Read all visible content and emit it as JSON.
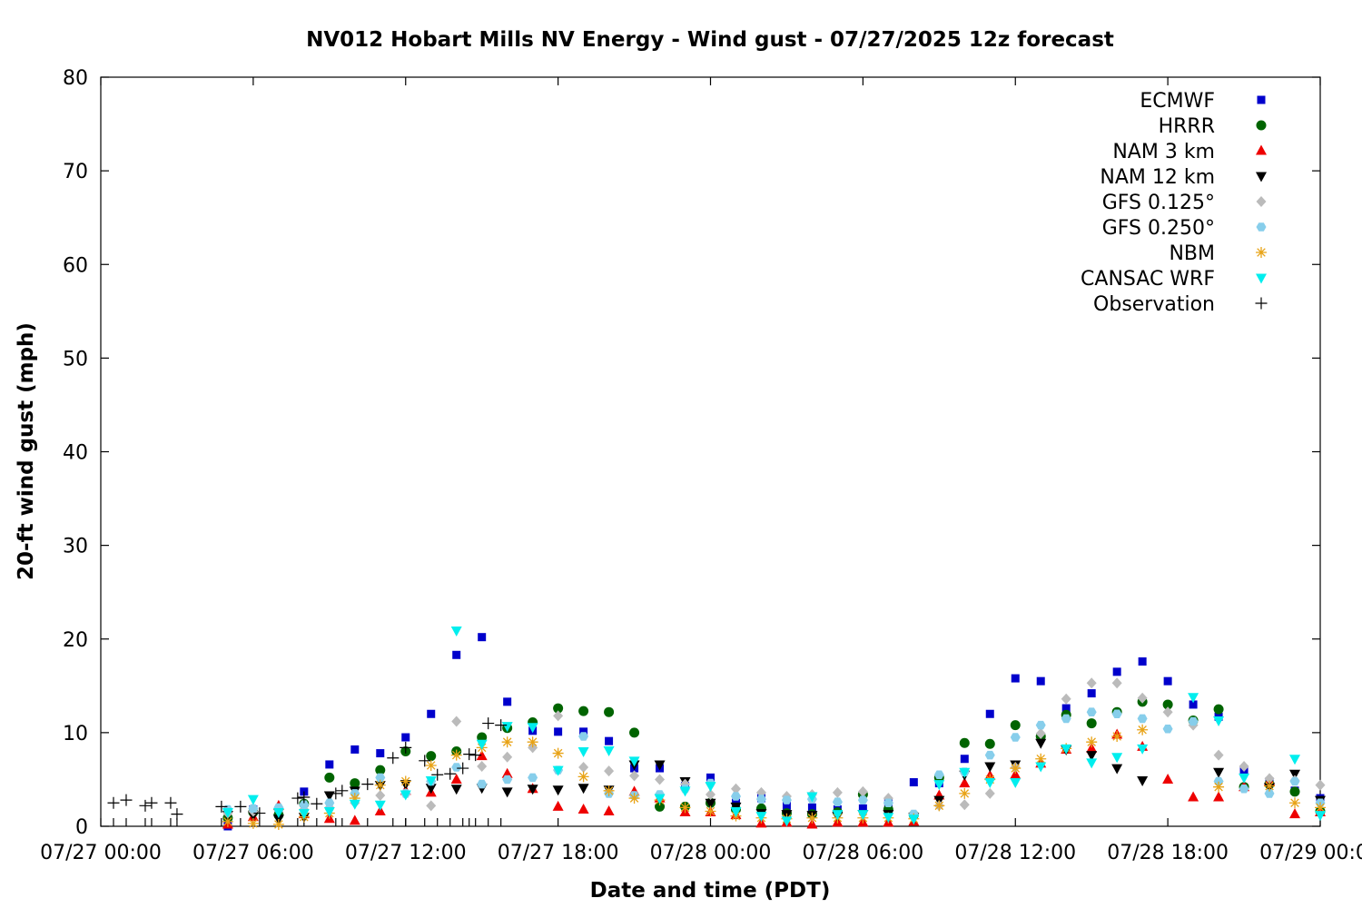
{
  "chart_data": {
    "type": "scatter",
    "title": "NV012 Hobart Mills NV Energy - Wind gust - 07/27/2025 12z forecast",
    "xlabel": "Date and time (PDT)",
    "ylabel": "20-ft wind gust (mph)",
    "xlim": [
      0,
      48
    ],
    "ylim": [
      0,
      80
    ],
    "x_unit": "hours since 07/27 00:00 PDT",
    "yticks": [
      0,
      10,
      20,
      30,
      40,
      50,
      60,
      70,
      80
    ],
    "xticks": [
      {
        "x": 0,
        "label": "07/27 00:00"
      },
      {
        "x": 6,
        "label": "07/27 06:00"
      },
      {
        "x": 12,
        "label": "07/27 12:00"
      },
      {
        "x": 18,
        "label": "07/27 18:00"
      },
      {
        "x": 24,
        "label": "07/28 00:00"
      },
      {
        "x": 30,
        "label": "07/28 06:00"
      },
      {
        "x": 36,
        "label": "07/28 12:00"
      },
      {
        "x": 42,
        "label": "07/28 18:00"
      },
      {
        "x": 48,
        "label": "07/29 00:00"
      }
    ],
    "grid": false,
    "legend_position": "top-right",
    "series": [
      {
        "name": "ECMWF",
        "marker": "square",
        "color": "#0000cc",
        "x": [
          5,
          6,
          7,
          8,
          9,
          10,
          11,
          12,
          13,
          14,
          15,
          16,
          17,
          18,
          19,
          20,
          21,
          22,
          23,
          24,
          25,
          26,
          27,
          28,
          29,
          30,
          31,
          32,
          33,
          34,
          35,
          36,
          37,
          38,
          39,
          40,
          41,
          42,
          43,
          44,
          45,
          46,
          47,
          48
        ],
        "y": [
          0,
          1.8,
          1.5,
          3.7,
          6.6,
          8.2,
          7.8,
          9.5,
          12,
          18.3,
          20.2,
          13.3,
          10.2,
          10.1,
          10.1,
          9.1,
          6.2,
          6.2,
          4.3,
          5.2,
          2.5,
          3,
          2.2,
          2,
          1.8,
          1.9,
          2.5,
          4.7,
          4.6,
          7.2,
          12,
          15.8,
          15.5,
          12.6,
          14.2,
          16.5,
          17.6,
          15.5,
          13,
          11.7,
          5.9,
          4.8,
          3.8,
          3
        ]
      },
      {
        "name": "HRRR",
        "marker": "circle",
        "color": "#006400",
        "x": [
          5,
          6,
          7,
          8,
          9,
          10,
          11,
          12,
          13,
          14,
          15,
          16,
          17,
          18,
          19,
          20,
          21,
          22,
          23,
          24,
          25,
          26,
          27,
          28,
          29,
          30,
          31,
          32,
          33,
          34,
          35,
          36,
          37,
          38,
          39,
          40,
          41,
          42,
          43,
          44,
          45,
          46,
          47,
          48
        ],
        "y": [
          0.9,
          1.5,
          1.2,
          2.4,
          5.2,
          4.6,
          6,
          8,
          7.5,
          8,
          9.5,
          10.5,
          11.1,
          12.6,
          12.3,
          12.2,
          10,
          2.1,
          2.1,
          2.5,
          1.8,
          1.9,
          1.4,
          1.3,
          1.5,
          3.4,
          1.8,
          1.2,
          5.2,
          8.9,
          8.8,
          10.8,
          9.6,
          11.9,
          11,
          12.2,
          13.3,
          13,
          11.3,
          12.5,
          4.2,
          4.5,
          3.7,
          1.6
        ]
      },
      {
        "name": "NAM 3 km",
        "marker": "triangle-up",
        "color": "#ee0000",
        "x": [
          5,
          6,
          7,
          8,
          9,
          10,
          11,
          12,
          13,
          14,
          15,
          16,
          17,
          18,
          19,
          20,
          21,
          22,
          23,
          24,
          25,
          26,
          27,
          28,
          29,
          30,
          31,
          32,
          33,
          34,
          35,
          36,
          37,
          38,
          39,
          40,
          41,
          42,
          43,
          44,
          45,
          46,
          47,
          48
        ],
        "y": [
          0.2,
          1,
          2.2,
          1.3,
          0.8,
          0.6,
          1.6,
          3.8,
          3.6,
          5,
          7.5,
          5.6,
          4,
          2.1,
          1.8,
          1.6,
          3.7,
          3,
          1.5,
          1.5,
          1.2,
          0.3,
          0.4,
          0.2,
          0.4,
          0.4,
          0.4,
          0.5,
          3.3,
          4.6,
          5.4,
          5.5,
          6.7,
          8.2,
          8.3,
          9.8,
          8.5,
          5,
          3.1,
          3.1,
          4.2,
          4.8,
          1.3,
          1.5
        ]
      },
      {
        "name": "NAM 12 km",
        "marker": "triangle-down",
        "color": "#000000",
        "x": [
          5,
          6,
          7,
          8,
          9,
          10,
          11,
          12,
          13,
          14,
          15,
          16,
          17,
          18,
          19,
          20,
          21,
          22,
          23,
          24,
          25,
          26,
          27,
          28,
          29,
          30,
          31,
          32,
          33,
          34,
          35,
          36,
          37,
          38,
          39,
          40,
          41,
          42,
          43,
          44,
          45,
          46,
          47,
          48
        ],
        "y": [
          1.2,
          1.2,
          0.8,
          1,
          3.3,
          3.8,
          4.4,
          4.5,
          4.1,
          4,
          4.1,
          3.7,
          4,
          3.9,
          4.1,
          3.9,
          6.6,
          6.6,
          4.8,
          2.5,
          2.1,
          1.4,
          1.3,
          1.2,
          1.1,
          1.3,
          1.3,
          1,
          2.8,
          5.5,
          6.4,
          6.6,
          8.9,
          8.2,
          7.6,
          6.2,
          4.9,
          null,
          null,
          5.8,
          null,
          4.2,
          5.6,
          2.8
        ]
      },
      {
        "name": "GFS 0.125°",
        "marker": "diamond",
        "color": "#bbbbbb",
        "x": [
          5,
          6,
          7,
          8,
          9,
          10,
          11,
          12,
          13,
          14,
          15,
          16,
          17,
          18,
          19,
          20,
          21,
          22,
          23,
          24,
          25,
          26,
          27,
          28,
          29,
          30,
          31,
          32,
          33,
          34,
          35,
          36,
          37,
          38,
          39,
          40,
          41,
          42,
          43,
          44,
          45,
          46,
          47,
          48
        ],
        "y": [
          1.4,
          1.6,
          1.7,
          1.8,
          2,
          2.5,
          3.3,
          3.5,
          2.2,
          11.2,
          6.4,
          7.4,
          8.4,
          11.8,
          6.3,
          5.9,
          5.4,
          5,
          4.5,
          3.4,
          4,
          3.6,
          3.2,
          3.4,
          3.6,
          3.7,
          3,
          1.1,
          2.2,
          2.3,
          3.5,
          6.3,
          9.9,
          13.6,
          15.3,
          15.3,
          13.7,
          12.2,
          10.8,
          7.6,
          6.4,
          5.1,
          4.9,
          4.4
        ]
      },
      {
        "name": "GFS 0.250°",
        "marker": "hexagon",
        "color": "#87ceeb",
        "x": [
          5,
          6,
          7,
          8,
          9,
          10,
          11,
          12,
          13,
          14,
          15,
          16,
          17,
          18,
          19,
          20,
          21,
          22,
          23,
          24,
          25,
          26,
          27,
          28,
          29,
          30,
          31,
          32,
          33,
          34,
          35,
          36,
          37,
          38,
          39,
          40,
          41,
          42,
          43,
          44,
          45,
          46,
          47,
          48
        ],
        "y": [
          1.8,
          1.9,
          2,
          2.3,
          2.5,
          3.5,
          5.2,
          3.5,
          4.8,
          6.3,
          4.5,
          5,
          5.2,
          6,
          9.6,
          3.5,
          3.3,
          3.4,
          4,
          4.6,
          3.2,
          2.9,
          2.8,
          2.9,
          2.6,
          2.8,
          2.5,
          1.3,
          5.5,
          5.8,
          7.6,
          9.5,
          10.8,
          11.5,
          12.2,
          12,
          11.5,
          10.4,
          11.2,
          4.8,
          4,
          3.5,
          4.8,
          2.5
        ]
      },
      {
        "name": "NBM",
        "marker": "asterisk",
        "color": "#e8a317",
        "x": [
          5,
          6,
          7,
          8,
          9,
          10,
          11,
          12,
          13,
          14,
          15,
          16,
          17,
          18,
          19,
          20,
          21,
          22,
          23,
          24,
          25,
          26,
          27,
          28,
          29,
          30,
          31,
          32,
          33,
          34,
          35,
          36,
          37,
          38,
          39,
          40,
          41,
          42,
          43,
          44,
          45,
          46,
          47,
          48
        ],
        "y": [
          0.5,
          0.3,
          0.2,
          1,
          1.4,
          3,
          4.4,
          4.8,
          6.5,
          7.6,
          8.4,
          9,
          9,
          7.8,
          5.3,
          3.8,
          3,
          2.8,
          2,
          1.6,
          1.1,
          0.9,
          0.8,
          0.9,
          0.9,
          0.9,
          0.9,
          0.8,
          2.2,
          3.5,
          5,
          6.2,
          7.2,
          8.3,
          9,
          9.6,
          10.3,
          null,
          null,
          4.2,
          null,
          4.3,
          2.5,
          2
        ]
      },
      {
        "name": "CANSAC WRF",
        "marker": "triangle-down",
        "color": "#00eeee",
        "x": [
          5,
          6,
          7,
          8,
          9,
          10,
          11,
          12,
          13,
          14,
          15,
          16,
          17,
          18,
          19,
          20,
          21,
          22,
          23,
          24,
          25,
          26,
          27,
          28,
          29,
          30,
          31,
          32,
          33,
          34,
          35,
          36,
          37,
          38,
          39,
          40,
          41,
          42,
          43,
          44,
          45,
          46,
          47,
          48
        ],
        "y": [
          1.5,
          2.9,
          1.5,
          1.4,
          1.6,
          2.4,
          2.3,
          3.4,
          4.9,
          20.9,
          8.8,
          10.7,
          10.6,
          6,
          8,
          8.1,
          7,
          3,
          3.8,
          4.3,
          1.6,
          1.1,
          0.6,
          3.2,
          1.3,
          1.3,
          1,
          0.8,
          4.5,
          5.8,
          4.7,
          4.7,
          6.4,
          8.3,
          6.8,
          7.4,
          8.3,
          null,
          13.8,
          11.3,
          5.2,
          null,
          7.2,
          1.2
        ]
      },
      {
        "name": "Observation",
        "marker": "plus",
        "color": "#000000",
        "x": [
          0.5,
          1,
          1.75,
          2,
          2.75,
          3,
          4.75,
          5.5,
          6.25,
          7.75,
          8,
          8.5,
          9.25,
          9.5,
          10.5,
          11.5,
          12,
          12.75,
          13.25,
          13.75,
          14.25,
          14.5,
          14.75,
          15.25,
          15.75
        ],
        "y": [
          2.5,
          2.8,
          2.2,
          2.5,
          2.5,
          1.3,
          2.1,
          2.1,
          1.4,
          3,
          3.1,
          2.4,
          3.5,
          3.8,
          4.5,
          7.3,
          8.4,
          7,
          5.5,
          5.6,
          6.2,
          7.7,
          7.6,
          11,
          10.8
        ]
      }
    ]
  }
}
